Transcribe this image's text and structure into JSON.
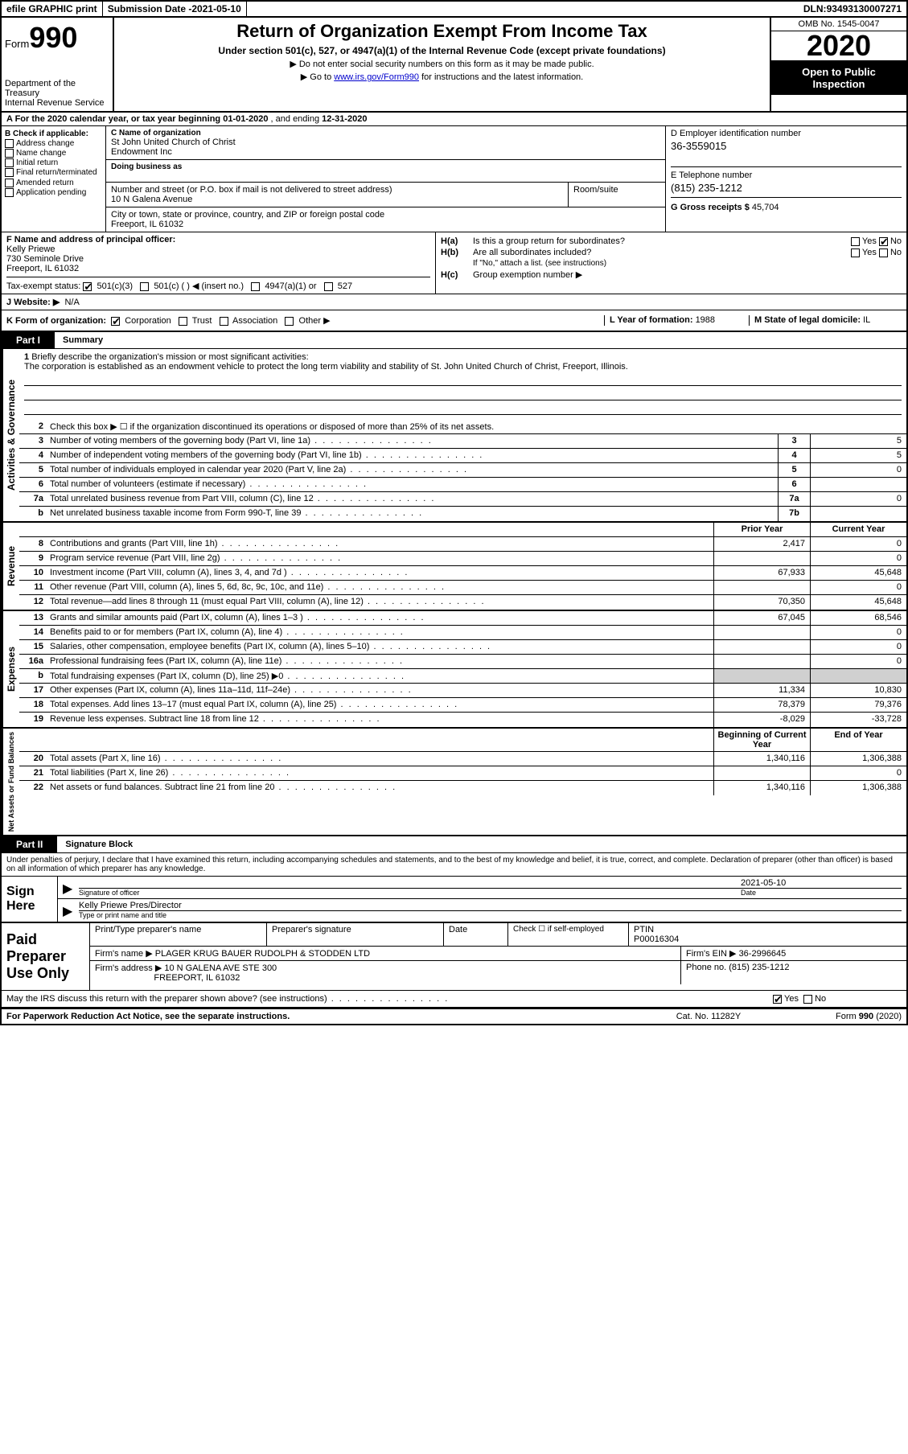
{
  "topbar": {
    "efile": "efile GRAPHIC print",
    "submission_label": "Submission Date - ",
    "submission_date": "2021-05-10",
    "dln_label": "DLN: ",
    "dln": "93493130007271"
  },
  "header": {
    "form_prefix": "Form",
    "form_number": "990",
    "dept1": "Department of the Treasury",
    "dept2": "Internal Revenue Service",
    "title": "Return of Organization Exempt From Income Tax",
    "subtitle": "Under section 501(c), 527, or 4947(a)(1) of the Internal Revenue Code (except private foundations)",
    "note1": "▶ Do not enter social security numbers on this form as it may be made public.",
    "note2_pre": "▶ Go to ",
    "note2_link": "www.irs.gov/Form990",
    "note2_post": " for instructions and the latest information.",
    "omb": "OMB No. 1545-0047",
    "year": "2020",
    "open": "Open to Public Inspection"
  },
  "lineA": {
    "text_pre": "A For the 2020 calendar year, or tax year beginning ",
    "begin": "01-01-2020",
    "mid": " , and ending ",
    "end": "12-31-2020"
  },
  "sectionB": {
    "label": "B Check if applicable:",
    "opts": [
      "Address change",
      "Name change",
      "Initial return",
      "Final return/terminated",
      "Amended return",
      "Application pending"
    ]
  },
  "sectionC": {
    "label": "C Name of organization",
    "name1": "St John United Church of Christ",
    "name2": "Endowment Inc",
    "dba_label": "Doing business as",
    "addr_label": "Number and street (or P.O. box if mail is not delivered to street address)",
    "room_label": "Room/suite",
    "addr": "10 N Galena Avenue",
    "city_label": "City or town, state or province, country, and ZIP or foreign postal code",
    "city": "Freeport, IL  61032"
  },
  "sectionD": {
    "label": "D Employer identification number",
    "ein": "36-3559015"
  },
  "sectionE": {
    "label": "E Telephone number",
    "phone": "(815) 235-1212"
  },
  "sectionG": {
    "label": "G Gross receipts $ ",
    "val": "45,704"
  },
  "sectionF": {
    "label": "F  Name and address of principal officer:",
    "name": "Kelly Priewe",
    "addr1": "730 Seminole Drive",
    "addr2": "Freeport, IL  61032"
  },
  "sectionH": {
    "ha_label": "Is this a group return for subordinates?",
    "ha_yes": "Yes",
    "ha_no": "No",
    "hb_label": "Are all subordinates included?",
    "hb_note": "If \"No,\" attach a list. (see instructions)",
    "hc_label": "Group exemption number ▶"
  },
  "rowI": {
    "label": "Tax-exempt status:",
    "opts": [
      "501(c)(3)",
      "501(c) (   ) ◀ (insert no.)",
      "4947(a)(1) or",
      "527"
    ]
  },
  "rowJ": {
    "label": "J   Website: ▶",
    "val": "N/A"
  },
  "rowK": {
    "label": "K Form of organization:",
    "opts": [
      "Corporation",
      "Trust",
      "Association",
      "Other ▶"
    ],
    "l_label": "L Year of formation: ",
    "l_val": "1988",
    "m_label": "M State of legal domicile: ",
    "m_val": "IL"
  },
  "part1": {
    "tab": "Part I",
    "title": "Summary",
    "side1": "Activities & Governance",
    "side2": "Revenue",
    "side3": "Expenses",
    "side4": "Net Assets or Fund Balances",
    "q1_label": "Briefly describe the organization's mission or most significant activities:",
    "q1_text": "The corporation is established as an endowment vehicle to protect the long term viability and stability of St. John United Church of Christ, Freeport, Illinois.",
    "q2": "Check this box ▶ ☐ if the organization discontinued its operations or disposed of more than 25% of its net assets.",
    "rows_simple": [
      {
        "n": "3",
        "t": "Number of voting members of the governing body (Part VI, line 1a)",
        "box": "3",
        "v": "5"
      },
      {
        "n": "4",
        "t": "Number of independent voting members of the governing body (Part VI, line 1b)",
        "box": "4",
        "v": "5"
      },
      {
        "n": "5",
        "t": "Total number of individuals employed in calendar year 2020 (Part V, line 2a)",
        "box": "5",
        "v": "0"
      },
      {
        "n": "6",
        "t": "Total number of volunteers (estimate if necessary)",
        "box": "6",
        "v": ""
      },
      {
        "n": "7a",
        "t": "Total unrelated business revenue from Part VIII, column (C), line 12",
        "box": "7a",
        "v": "0"
      },
      {
        "n": "b",
        "t": "Net unrelated business taxable income from Form 990-T, line 39",
        "box": "7b",
        "v": ""
      }
    ],
    "col_py": "Prior Year",
    "col_cy": "Current Year",
    "col_boy": "Beginning of Current Year",
    "col_eoy": "End of Year",
    "rows_rev": [
      {
        "n": "8",
        "t": "Contributions and grants (Part VIII, line 1h)",
        "py": "2,417",
        "cy": "0"
      },
      {
        "n": "9",
        "t": "Program service revenue (Part VIII, line 2g)",
        "py": "",
        "cy": "0"
      },
      {
        "n": "10",
        "t": "Investment income (Part VIII, column (A), lines 3, 4, and 7d )",
        "py": "67,933",
        "cy": "45,648"
      },
      {
        "n": "11",
        "t": "Other revenue (Part VIII, column (A), lines 5, 6d, 8c, 9c, 10c, and 11e)",
        "py": "",
        "cy": "0"
      },
      {
        "n": "12",
        "t": "Total revenue—add lines 8 through 11 (must equal Part VIII, column (A), line 12)",
        "py": "70,350",
        "cy": "45,648"
      }
    ],
    "rows_exp": [
      {
        "n": "13",
        "t": "Grants and similar amounts paid (Part IX, column (A), lines 1–3 )",
        "py": "67,045",
        "cy": "68,546"
      },
      {
        "n": "14",
        "t": "Benefits paid to or for members (Part IX, column (A), line 4)",
        "py": "",
        "cy": "0"
      },
      {
        "n": "15",
        "t": "Salaries, other compensation, employee benefits (Part IX, column (A), lines 5–10)",
        "py": "",
        "cy": "0"
      },
      {
        "n": "16a",
        "t": "Professional fundraising fees (Part IX, column (A), line 11e)",
        "py": "",
        "cy": "0"
      },
      {
        "n": "b",
        "t": "Total fundraising expenses (Part IX, column (D), line 25) ▶0",
        "py": "shade",
        "cy": "shade"
      },
      {
        "n": "17",
        "t": "Other expenses (Part IX, column (A), lines 11a–11d, 11f–24e)",
        "py": "11,334",
        "cy": "10,830"
      },
      {
        "n": "18",
        "t": "Total expenses. Add lines 13–17 (must equal Part IX, column (A), line 25)",
        "py": "78,379",
        "cy": "79,376"
      },
      {
        "n": "19",
        "t": "Revenue less expenses. Subtract line 18 from line 12",
        "py": "-8,029",
        "cy": "-33,728"
      }
    ],
    "rows_net": [
      {
        "n": "20",
        "t": "Total assets (Part X, line 16)",
        "py": "1,340,116",
        "cy": "1,306,388"
      },
      {
        "n": "21",
        "t": "Total liabilities (Part X, line 26)",
        "py": "",
        "cy": "0"
      },
      {
        "n": "22",
        "t": "Net assets or fund balances. Subtract line 21 from line 20",
        "py": "1,340,116",
        "cy": "1,306,388"
      }
    ]
  },
  "part2": {
    "tab": "Part II",
    "title": "Signature Block",
    "declare": "Under penalties of perjury, I declare that I have examined this return, including accompanying schedules and statements, and to the best of my knowledge and belief, it is true, correct, and complete. Declaration of preparer (other than officer) is based on all information of which preparer has any knowledge.",
    "sign_here": "Sign Here",
    "sig_officer_label": "Signature of officer",
    "date_label": "Date",
    "sig_date": "2021-05-10",
    "sig_name": "Kelly Priewe  Pres/Director",
    "sig_name_label": "Type or print name and title",
    "paid_label": "Paid Preparer Use Only",
    "prep_name_label": "Print/Type preparer's name",
    "prep_sig_label": "Preparer's signature",
    "prep_date_label": "Date",
    "check_self": "Check ☐ if self-employed",
    "ptin_label": "PTIN",
    "ptin": "P00016304",
    "firm_name_label": "Firm's name    ▶ ",
    "firm_name": "PLAGER KRUG BAUER RUDOLPH & STODDEN LTD",
    "firm_ein_label": "Firm's EIN ▶ ",
    "firm_ein": "36-2996645",
    "firm_addr_label": "Firm's address ▶ ",
    "firm_addr1": "10 N GALENA AVE STE 300",
    "firm_addr2": "FREEPORT, IL  61032",
    "firm_phone_label": "Phone no. ",
    "firm_phone": "(815) 235-1212",
    "discuss": "May the IRS discuss this return with the preparer shown above? (see instructions)",
    "discuss_yes": "Yes",
    "discuss_no": "No"
  },
  "footer": {
    "f1": "For Paperwork Reduction Act Notice, see the separate instructions.",
    "f2": "Cat. No. 11282Y",
    "f3": "Form 990 (2020)"
  }
}
